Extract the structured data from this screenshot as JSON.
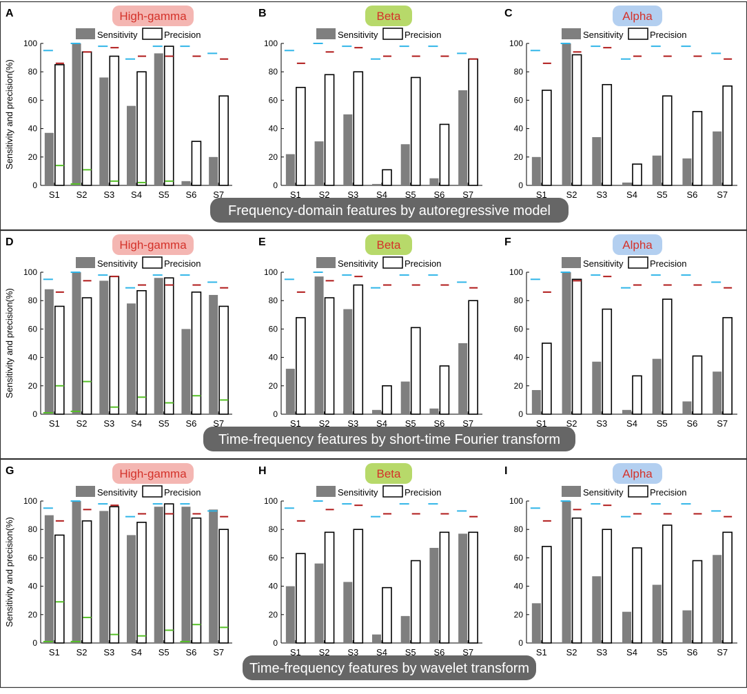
{
  "figure": {
    "rows": [
      {
        "caption": "Frequency-domain features by autoregressive model"
      },
      {
        "caption": "Time-frequency features by short-time Fourier transform"
      },
      {
        "caption": "Time-frequency features by wavelet transform"
      }
    ]
  },
  "colors": {
    "sensitivity_fill": "#7f7f7f",
    "precision_fill": "#ffffff",
    "bar_outline": "#000000",
    "marker_cyan": "#2fb5e8",
    "marker_red": "#b01818",
    "marker_green": "#55c026",
    "high_gamma_pill": "#f4b6b2",
    "beta_pill": "#b7d96a",
    "alpha_pill": "#b3cff0",
    "caption_bg": "#666666",
    "caption_text": "#ffffff"
  },
  "chart_data": [
    {
      "panel": "A",
      "type": "bar",
      "band": "High-gamma",
      "ylabel": "Sensitivity and precision(%)",
      "ylim": [
        0,
        100
      ],
      "yticks": [
        0,
        20,
        40,
        60,
        80,
        100
      ],
      "categories": [
        "S1",
        "S2",
        "S3",
        "S4",
        "S5",
        "S6",
        "S7"
      ],
      "series": [
        {
          "name": "Sensitivity",
          "values": [
            37,
            100,
            76,
            56,
            93,
            3,
            20
          ]
        },
        {
          "name": "Precision",
          "values": [
            85,
            94,
            91,
            80,
            98,
            31,
            63
          ]
        }
      ],
      "markers": {
        "cyan": [
          95,
          100,
          98,
          89,
          98,
          98,
          93
        ],
        "red": [
          86,
          94,
          97,
          91,
          91,
          91,
          89
        ],
        "green": [
          14,
          11,
          3,
          2,
          3,
          null,
          null
        ],
        "green_low": [
          0,
          1,
          0,
          0,
          0,
          0,
          0
        ]
      }
    },
    {
      "panel": "B",
      "type": "bar",
      "band": "Beta",
      "ylabel": "",
      "ylim": [
        0,
        100
      ],
      "yticks": [
        0,
        20,
        40,
        60,
        80,
        100
      ],
      "categories": [
        "S1",
        "S2",
        "S3",
        "S4",
        "S5",
        "S6",
        "S7"
      ],
      "series": [
        {
          "name": "Sensitivity",
          "values": [
            22,
            31,
            50,
            1,
            29,
            5,
            67
          ]
        },
        {
          "name": "Precision",
          "values": [
            69,
            78,
            80,
            11,
            76,
            43,
            89
          ]
        }
      ],
      "markers": {
        "cyan": [
          95,
          100,
          98,
          89,
          98,
          98,
          93
        ],
        "red": [
          86,
          94,
          97,
          91,
          91,
          91,
          89
        ],
        "green": [],
        "green_low": []
      }
    },
    {
      "panel": "C",
      "type": "bar",
      "band": "Alpha",
      "ylabel": "",
      "ylim": [
        0,
        100
      ],
      "yticks": [
        0,
        20,
        40,
        60,
        80,
        100
      ],
      "categories": [
        "S1",
        "S2",
        "S3",
        "S4",
        "S5",
        "S6",
        "S7"
      ],
      "series": [
        {
          "name": "Sensitivity",
          "values": [
            20,
            100,
            34,
            2,
            21,
            19,
            38
          ]
        },
        {
          "name": "Precision",
          "values": [
            67,
            92,
            71,
            15,
            63,
            52,
            70
          ]
        }
      ],
      "markers": {
        "cyan": [
          95,
          100,
          98,
          89,
          98,
          98,
          93
        ],
        "red": [
          86,
          94,
          97,
          91,
          91,
          91,
          89
        ],
        "green": [],
        "green_low": []
      }
    },
    {
      "panel": "D",
      "type": "bar",
      "band": "High-gamma",
      "ylabel": "Sensitivity and precision(%)",
      "ylim": [
        0,
        100
      ],
      "yticks": [
        0,
        20,
        40,
        60,
        80,
        100
      ],
      "categories": [
        "S1",
        "S2",
        "S3",
        "S4",
        "S5",
        "S6",
        "S7"
      ],
      "series": [
        {
          "name": "Sensitivity",
          "values": [
            88,
            100,
            94,
            78,
            96,
            60,
            84
          ]
        },
        {
          "name": "Precision",
          "values": [
            76,
            82,
            97,
            87,
            96,
            86,
            76
          ]
        }
      ],
      "markers": {
        "cyan": [
          95,
          100,
          98,
          89,
          98,
          98,
          93
        ],
        "red": [
          86,
          94,
          97,
          91,
          91,
          91,
          89
        ],
        "green": [
          20,
          23,
          5,
          12,
          8,
          13,
          10
        ],
        "green_low": [
          1,
          2,
          0,
          0,
          0,
          0,
          0
        ]
      }
    },
    {
      "panel": "E",
      "type": "bar",
      "band": "Beta",
      "ylabel": "",
      "ylim": [
        0,
        100
      ],
      "yticks": [
        0,
        20,
        40,
        60,
        80,
        100
      ],
      "categories": [
        "S1",
        "S2",
        "S3",
        "S4",
        "S5",
        "S6",
        "S7"
      ],
      "series": [
        {
          "name": "Sensitivity",
          "values": [
            32,
            97,
            74,
            3,
            23,
            4,
            50
          ]
        },
        {
          "name": "Precision",
          "values": [
            68,
            82,
            91,
            20,
            61,
            34,
            80
          ]
        }
      ],
      "markers": {
        "cyan": [
          95,
          100,
          98,
          89,
          98,
          98,
          93
        ],
        "red": [
          86,
          94,
          97,
          91,
          91,
          91,
          89
        ],
        "green": [],
        "green_low": []
      }
    },
    {
      "panel": "F",
      "type": "bar",
      "band": "Alpha",
      "ylabel": "",
      "ylim": [
        0,
        100
      ],
      "yticks": [
        0,
        20,
        40,
        60,
        80,
        100
      ],
      "categories": [
        "S1",
        "S2",
        "S3",
        "S4",
        "S5",
        "S6",
        "S7"
      ],
      "series": [
        {
          "name": "Sensitivity",
          "values": [
            17,
            100,
            37,
            3,
            39,
            9,
            30
          ]
        },
        {
          "name": "Precision",
          "values": [
            50,
            95,
            74,
            27,
            81,
            41,
            68
          ]
        }
      ],
      "markers": {
        "cyan": [
          95,
          100,
          98,
          89,
          98,
          98,
          93
        ],
        "red": [
          86,
          94,
          97,
          91,
          91,
          91,
          89
        ],
        "green": [],
        "green_low": []
      }
    },
    {
      "panel": "G",
      "type": "bar",
      "band": "High-gamma",
      "ylabel": "Sensitivity and precision(%)",
      "ylim": [
        0,
        100
      ],
      "yticks": [
        0,
        20,
        40,
        60,
        80,
        100
      ],
      "categories": [
        "S1",
        "S2",
        "S3",
        "S4",
        "S5",
        "S6",
        "S7"
      ],
      "series": [
        {
          "name": "Sensitivity",
          "values": [
            90,
            100,
            93,
            76,
            96,
            96,
            94
          ]
        },
        {
          "name": "Precision",
          "values": [
            76,
            86,
            96,
            85,
            98,
            88,
            80
          ]
        }
      ],
      "markers": {
        "cyan": [
          95,
          100,
          98,
          89,
          98,
          98,
          93
        ],
        "red": [
          86,
          94,
          97,
          91,
          91,
          91,
          89
        ],
        "green": [
          29,
          18,
          6,
          5,
          9,
          13,
          11
        ],
        "green_low": [
          1,
          1,
          0,
          0,
          0,
          1,
          0
        ]
      }
    },
    {
      "panel": "H",
      "type": "bar",
      "band": "Beta",
      "ylabel": "",
      "ylim": [
        0,
        100
      ],
      "yticks": [
        0,
        20,
        40,
        60,
        80,
        100
      ],
      "categories": [
        "S1",
        "S2",
        "S3",
        "S4",
        "S5",
        "S6",
        "S7"
      ],
      "series": [
        {
          "name": "Sensitivity",
          "values": [
            40,
            56,
            43,
            6,
            19,
            67,
            77
          ]
        },
        {
          "name": "Precision",
          "values": [
            63,
            78,
            80,
            39,
            58,
            78,
            78
          ]
        }
      ],
      "markers": {
        "cyan": [
          95,
          100,
          98,
          89,
          98,
          98,
          93
        ],
        "red": [
          86,
          94,
          97,
          91,
          91,
          91,
          89
        ],
        "green": [],
        "green_low": []
      }
    },
    {
      "panel": "I",
      "type": "bar",
      "band": "Alpha",
      "ylabel": "",
      "ylim": [
        0,
        100
      ],
      "yticks": [
        0,
        20,
        40,
        60,
        80,
        100
      ],
      "categories": [
        "S1",
        "S2",
        "S3",
        "S4",
        "S5",
        "S6",
        "S7"
      ],
      "series": [
        {
          "name": "Sensitivity",
          "values": [
            28,
            100,
            47,
            22,
            41,
            23,
            62
          ]
        },
        {
          "name": "Precision",
          "values": [
            68,
            88,
            80,
            67,
            83,
            58,
            78
          ]
        }
      ],
      "markers": {
        "cyan": [
          95,
          100,
          98,
          89,
          98,
          98,
          93
        ],
        "red": [
          86,
          94,
          97,
          91,
          91,
          91,
          89
        ],
        "green": [],
        "green_low": []
      }
    }
  ]
}
